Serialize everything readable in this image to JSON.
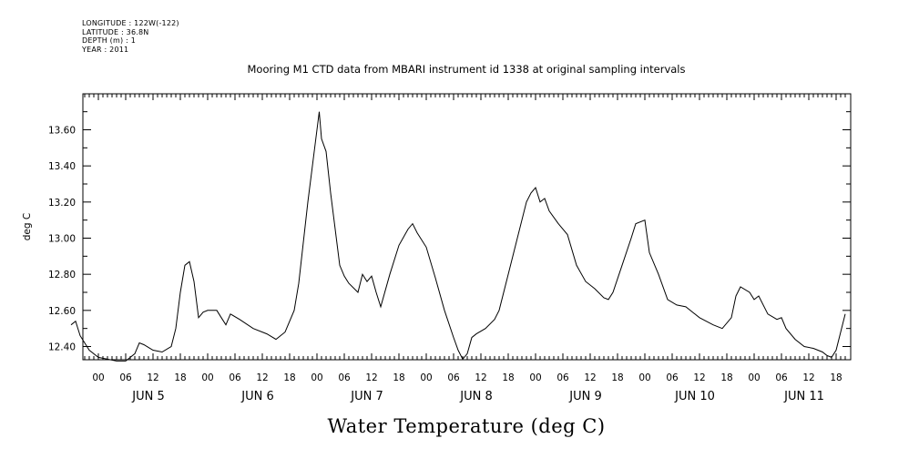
{
  "header": {
    "longitude": "LONGITUDE : 122W(-122)",
    "latitude": "LATITUDE : 36.8N",
    "depth": "DEPTH (m) : 1",
    "year": "YEAR : 2011"
  },
  "chart_data": {
    "type": "line",
    "title": "Mooring M1 CTD data from MBARI instrument id 1338 at original sampling intervals",
    "xlabel": "Water Temperature (deg C)",
    "ylabel": "deg C",
    "x_start": "2011-06-04 18:00",
    "x_end": "2011-06-11 20:00",
    "ylim": [
      12.3,
      13.75
    ],
    "yticks": [
      12.4,
      12.6,
      12.8,
      13.0,
      13.2,
      13.4,
      13.6
    ],
    "ytick_labels": [
      "12.40",
      "12.60",
      "12.80",
      "13.00",
      "13.20",
      "13.40",
      "13.60"
    ],
    "hour_labels": [
      {
        "time": "2011-06-05 00:00",
        "label": "00"
      },
      {
        "time": "2011-06-05 06:00",
        "label": "06"
      },
      {
        "time": "2011-06-05 12:00",
        "label": "12"
      },
      {
        "time": "2011-06-05 18:00",
        "label": "18"
      },
      {
        "time": "2011-06-06 00:00",
        "label": "00"
      },
      {
        "time": "2011-06-06 06:00",
        "label": "06"
      },
      {
        "time": "2011-06-06 12:00",
        "label": "12"
      },
      {
        "time": "2011-06-06 18:00",
        "label": "18"
      },
      {
        "time": "2011-06-07 00:00",
        "label": "00"
      },
      {
        "time": "2011-06-07 06:00",
        "label": "06"
      },
      {
        "time": "2011-06-07 12:00",
        "label": "12"
      },
      {
        "time": "2011-06-07 18:00",
        "label": "18"
      },
      {
        "time": "2011-06-08 00:00",
        "label": "00"
      },
      {
        "time": "2011-06-08 06:00",
        "label": "06"
      },
      {
        "time": "2011-06-08 12:00",
        "label": "12"
      },
      {
        "time": "2011-06-08 18:00",
        "label": "18"
      },
      {
        "time": "2011-06-09 00:00",
        "label": "00"
      },
      {
        "time": "2011-06-09 06:00",
        "label": "06"
      },
      {
        "time": "2011-06-09 12:00",
        "label": "12"
      },
      {
        "time": "2011-06-09 18:00",
        "label": "18"
      },
      {
        "time": "2011-06-10 00:00",
        "label": "00"
      },
      {
        "time": "2011-06-10 06:00",
        "label": "06"
      },
      {
        "time": "2011-06-10 12:00",
        "label": "12"
      },
      {
        "time": "2011-06-10 18:00",
        "label": "18"
      },
      {
        "time": "2011-06-11 00:00",
        "label": "00"
      },
      {
        "time": "2011-06-11 06:00",
        "label": "06"
      },
      {
        "time": "2011-06-11 12:00",
        "label": "12"
      },
      {
        "time": "2011-06-11 18:00",
        "label": "18"
      }
    ],
    "day_labels": [
      {
        "time": "2011-06-05 12:00",
        "label": "JUN  5"
      },
      {
        "time": "2011-06-06 12:00",
        "label": "JUN  6"
      },
      {
        "time": "2011-06-07 12:00",
        "label": "JUN  7"
      },
      {
        "time": "2011-06-08 12:00",
        "label": "JUN  8"
      },
      {
        "time": "2011-06-09 12:00",
        "label": "JUN  9"
      },
      {
        "time": "2011-06-10 12:00",
        "label": "JUN 10"
      },
      {
        "time": "2011-06-11 12:00",
        "label": "JUN 11"
      }
    ],
    "series": [
      {
        "points": [
          [
            "2011-06-04 18:00",
            12.52
          ],
          [
            "2011-06-04 19:00",
            12.54
          ],
          [
            "2011-06-04 20:00",
            12.46
          ],
          [
            "2011-06-04 22:00",
            12.38
          ],
          [
            "2011-06-05 00:00",
            12.34
          ],
          [
            "2011-06-05 02:00",
            12.33
          ],
          [
            "2011-06-05 04:00",
            12.32
          ],
          [
            "2011-06-05 06:00",
            12.32
          ],
          [
            "2011-06-05 08:00",
            12.36
          ],
          [
            "2011-06-05 09:00",
            12.42
          ],
          [
            "2011-06-05 10:00",
            12.41
          ],
          [
            "2011-06-05 12:00",
            12.38
          ],
          [
            "2011-06-05 14:00",
            12.37
          ],
          [
            "2011-06-05 16:00",
            12.4
          ],
          [
            "2011-06-05 17:00",
            12.5
          ],
          [
            "2011-06-05 18:00",
            12.7
          ],
          [
            "2011-06-05 19:00",
            12.85
          ],
          [
            "2011-06-05 20:00",
            12.87
          ],
          [
            "2011-06-05 21:00",
            12.76
          ],
          [
            "2011-06-05 22:00",
            12.56
          ],
          [
            "2011-06-05 23:00",
            12.59
          ],
          [
            "2011-06-06 00:00",
            12.6
          ],
          [
            "2011-06-06 02:00",
            12.6
          ],
          [
            "2011-06-06 03:00",
            12.56
          ],
          [
            "2011-06-06 04:00",
            12.52
          ],
          [
            "2011-06-06 05:00",
            12.58
          ],
          [
            "2011-06-06 07:00",
            12.55
          ],
          [
            "2011-06-06 10:00",
            12.5
          ],
          [
            "2011-06-06 13:00",
            12.47
          ],
          [
            "2011-06-06 15:00",
            12.44
          ],
          [
            "2011-06-06 17:00",
            12.48
          ],
          [
            "2011-06-06 19:00",
            12.6
          ],
          [
            "2011-06-06 20:00",
            12.75
          ],
          [
            "2011-06-06 22:00",
            13.2
          ],
          [
            "2011-06-06 23:00",
            13.4
          ],
          [
            "2011-06-07 00:00",
            13.6
          ],
          [
            "2011-06-07 00:30",
            13.7
          ],
          [
            "2011-06-07 01:00",
            13.55
          ],
          [
            "2011-06-07 02:00",
            13.48
          ],
          [
            "2011-06-07 03:00",
            13.25
          ],
          [
            "2011-06-07 04:00",
            13.05
          ],
          [
            "2011-06-07 05:00",
            12.85
          ],
          [
            "2011-06-07 06:00",
            12.79
          ],
          [
            "2011-06-07 07:00",
            12.75
          ],
          [
            "2011-06-07 09:00",
            12.7
          ],
          [
            "2011-06-07 10:00",
            12.8
          ],
          [
            "2011-06-07 11:00",
            12.76
          ],
          [
            "2011-06-07 12:00",
            12.79
          ],
          [
            "2011-06-07 13:00",
            12.7
          ],
          [
            "2011-06-07 14:00",
            12.62
          ],
          [
            "2011-06-07 16:00",
            12.8
          ],
          [
            "2011-06-07 18:00",
            12.96
          ],
          [
            "2011-06-07 20:00",
            13.05
          ],
          [
            "2011-06-07 21:00",
            13.08
          ],
          [
            "2011-06-07 22:00",
            13.03
          ],
          [
            "2011-06-08 00:00",
            12.95
          ],
          [
            "2011-06-08 02:00",
            12.78
          ],
          [
            "2011-06-08 04:00",
            12.6
          ],
          [
            "2011-06-08 06:00",
            12.45
          ],
          [
            "2011-06-08 07:00",
            12.38
          ],
          [
            "2011-06-08 08:00",
            12.33
          ],
          [
            "2011-06-08 09:00",
            12.36
          ],
          [
            "2011-06-08 10:00",
            12.45
          ],
          [
            "2011-06-08 11:00",
            12.47
          ],
          [
            "2011-06-08 13:00",
            12.5
          ],
          [
            "2011-06-08 15:00",
            12.55
          ],
          [
            "2011-06-08 16:00",
            12.6
          ],
          [
            "2011-06-08 18:00",
            12.8
          ],
          [
            "2011-06-08 20:00",
            13.0
          ],
          [
            "2011-06-08 22:00",
            13.2
          ],
          [
            "2011-06-08 23:00",
            13.25
          ],
          [
            "2011-06-09 00:00",
            13.28
          ],
          [
            "2011-06-09 01:00",
            13.2
          ],
          [
            "2011-06-09 02:00",
            13.22
          ],
          [
            "2011-06-09 03:00",
            13.15
          ],
          [
            "2011-06-09 05:00",
            13.08
          ],
          [
            "2011-06-09 06:00",
            13.05
          ],
          [
            "2011-06-09 07:00",
            13.02
          ],
          [
            "2011-06-09 09:00",
            12.85
          ],
          [
            "2011-06-09 11:00",
            12.76
          ],
          [
            "2011-06-09 13:00",
            12.72
          ],
          [
            "2011-06-09 15:00",
            12.67
          ],
          [
            "2011-06-09 16:00",
            12.66
          ],
          [
            "2011-06-09 17:00",
            12.7
          ],
          [
            "2011-06-09 19:00",
            12.85
          ],
          [
            "2011-06-09 21:00",
            13.0
          ],
          [
            "2011-06-09 22:00",
            13.08
          ],
          [
            "2011-06-10 00:00",
            13.1
          ],
          [
            "2011-06-10 01:00",
            12.92
          ],
          [
            "2011-06-10 03:00",
            12.8
          ],
          [
            "2011-06-10 05:00",
            12.66
          ],
          [
            "2011-06-10 07:00",
            12.63
          ],
          [
            "2011-06-10 09:00",
            12.62
          ],
          [
            "2011-06-10 12:00",
            12.56
          ],
          [
            "2011-06-10 15:00",
            12.52
          ],
          [
            "2011-06-10 17:00",
            12.5
          ],
          [
            "2011-06-10 19:00",
            12.56
          ],
          [
            "2011-06-10 20:00",
            12.68
          ],
          [
            "2011-06-10 21:00",
            12.73
          ],
          [
            "2011-06-10 23:00",
            12.7
          ],
          [
            "2011-06-11 00:00",
            12.66
          ],
          [
            "2011-06-11 01:00",
            12.68
          ],
          [
            "2011-06-11 03:00",
            12.58
          ],
          [
            "2011-06-11 05:00",
            12.55
          ],
          [
            "2011-06-11 06:00",
            12.56
          ],
          [
            "2011-06-11 07:00",
            12.5
          ],
          [
            "2011-06-11 09:00",
            12.44
          ],
          [
            "2011-06-11 11:00",
            12.4
          ],
          [
            "2011-06-11 13:00",
            12.39
          ],
          [
            "2011-06-11 15:00",
            12.37
          ],
          [
            "2011-06-11 16:00",
            12.35
          ],
          [
            "2011-06-11 17:00",
            12.34
          ],
          [
            "2011-06-11 18:00",
            12.38
          ],
          [
            "2011-06-11 19:00",
            12.48
          ],
          [
            "2011-06-11 20:00",
            12.58
          ]
        ]
      }
    ]
  }
}
